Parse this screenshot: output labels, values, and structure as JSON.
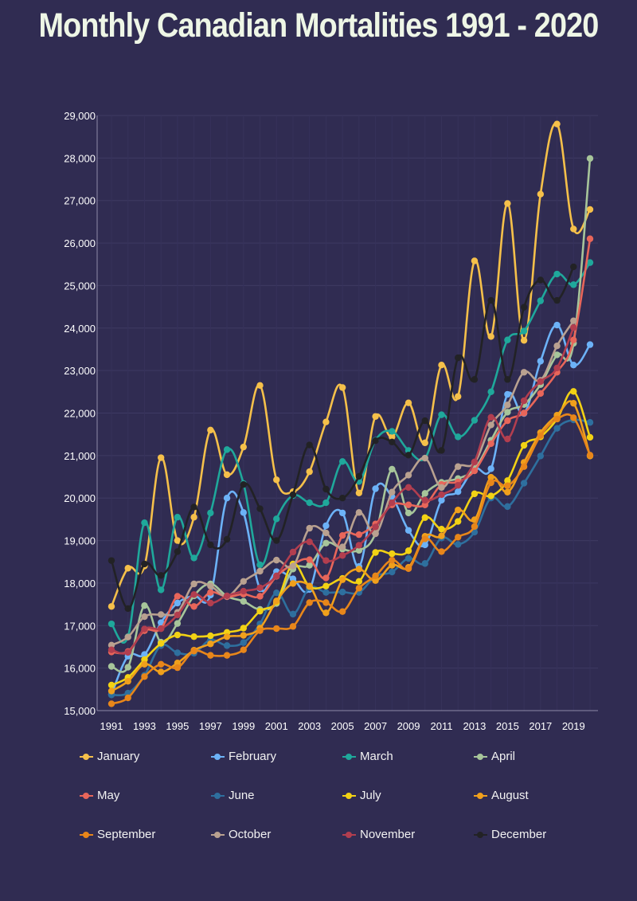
{
  "chart_data": {
    "type": "line",
    "title": "Monthly Canadian Mortalities 1991 - 2020",
    "xlabel": "",
    "ylabel": "",
    "x": [
      1991,
      1992,
      1993,
      1994,
      1995,
      1996,
      1997,
      1998,
      1999,
      2000,
      2001,
      2002,
      2003,
      2004,
      2005,
      2006,
      2007,
      2008,
      2009,
      2010,
      2011,
      2012,
      2013,
      2014,
      2015,
      2016,
      2017,
      2018,
      2019,
      2020
    ],
    "x_ticks": [
      "1991",
      "1993",
      "1995",
      "1997",
      "1999",
      "2001",
      "2003",
      "2005",
      "2007",
      "2009",
      "2011",
      "2013",
      "2015",
      "2017",
      "2019"
    ],
    "y_ticks": [
      "15,000",
      "16,000",
      "17,000",
      "18,000",
      "19,000",
      "20,000",
      "21,000",
      "22,000",
      "23,000",
      "24,000",
      "25,000",
      "26,000",
      "27,000",
      "28,000",
      "29,000"
    ],
    "ylim": [
      15000,
      29000
    ],
    "grid": true,
    "legend": "bottom",
    "series": [
      {
        "name": "January",
        "color": "#f5c04a",
        "values": [
          17450,
          18350,
          18400,
          20950,
          19000,
          19550,
          21600,
          20550,
          21200,
          22650,
          20430,
          20150,
          20620,
          21790,
          22600,
          20120,
          21920,
          21440,
          22240,
          21300,
          23130,
          22390,
          25580,
          23800,
          26930,
          23710,
          27150,
          28800,
          26330,
          26790
        ]
      },
      {
        "name": "February",
        "color": "#6cb2f7",
        "values": [
          15380,
          16280,
          16320,
          17070,
          17530,
          17700,
          17720,
          20000,
          19660,
          17870,
          18270,
          18100,
          17850,
          19350,
          19650,
          18390,
          20220,
          20030,
          19240,
          18900,
          19950,
          20150,
          20690,
          20690,
          22440,
          21990,
          23220,
          24070,
          23130,
          23610
        ]
      },
      {
        "name": "March",
        "color": "#1fa89b",
        "values": [
          17040,
          16740,
          19420,
          17840,
          19550,
          18590,
          19650,
          21140,
          20340,
          18430,
          19510,
          20060,
          19890,
          19890,
          20860,
          20390,
          21360,
          21570,
          21120,
          20940,
          21960,
          21440,
          21830,
          22500,
          23720,
          23930,
          24640,
          25270,
          25020,
          25540
        ]
      },
      {
        "name": "April",
        "color": "#a7c59a",
        "values": [
          16040,
          16020,
          17470,
          16610,
          17050,
          17700,
          17980,
          17690,
          17570,
          17380,
          17520,
          18330,
          18420,
          18940,
          18800,
          18770,
          19170,
          20680,
          19650,
          20110,
          20370,
          20460,
          20680,
          21360,
          22020,
          22200,
          22670,
          23370,
          23640,
          27990
        ]
      },
      {
        "name": "May",
        "color": "#e8665a",
        "values": [
          16380,
          16390,
          16880,
          16930,
          17690,
          17450,
          17780,
          17680,
          17740,
          17690,
          18160,
          18440,
          18550,
          18120,
          19120,
          19140,
          19390,
          19840,
          19840,
          19840,
          20320,
          20380,
          20640,
          21280,
          21820,
          22000,
          22460,
          22960,
          23720,
          26100
        ]
      },
      {
        "name": "June",
        "color": "#2e6f9e",
        "values": [
          15370,
          15410,
          15830,
          16530,
          16360,
          16350,
          16660,
          16530,
          16600,
          17040,
          17770,
          17270,
          17890,
          17780,
          17790,
          17780,
          18160,
          18260,
          18580,
          18460,
          19060,
          18910,
          19200,
          20000,
          19800,
          20350,
          20990,
          21640,
          21840,
          21780
        ]
      },
      {
        "name": "July",
        "color": "#f2d214",
        "values": [
          15600,
          15780,
          16200,
          16580,
          16780,
          16740,
          16760,
          16840,
          16940,
          17340,
          17550,
          18450,
          17920,
          17930,
          18110,
          18040,
          18720,
          18690,
          18760,
          19540,
          19270,
          19450,
          20100,
          20050,
          20410,
          21240,
          21440,
          21860,
          22510,
          21430
        ]
      },
      {
        "name": "August",
        "color": "#f0a01c",
        "values": [
          15460,
          15690,
          16090,
          15910,
          16120,
          16420,
          16570,
          16740,
          16770,
          16940,
          17580,
          17990,
          17930,
          17300,
          18080,
          18330,
          18060,
          18420,
          18370,
          19100,
          19110,
          19720,
          19490,
          20490,
          20140,
          20840,
          21540,
          21950,
          22230,
          20990
        ]
      },
      {
        "name": "September",
        "color": "#e8861a",
        "values": [
          15160,
          15300,
          15800,
          16090,
          16010,
          16400,
          16300,
          16300,
          16430,
          16880,
          16930,
          16980,
          17540,
          17540,
          17330,
          17880,
          18170,
          18540,
          18340,
          19040,
          18740,
          19080,
          19330,
          20360,
          20290,
          20740,
          21470,
          21860,
          21890,
          21010
        ]
      },
      {
        "name": "October",
        "color": "#b9a190",
        "values": [
          16540,
          16730,
          17210,
          17260,
          17310,
          17980,
          17930,
          17690,
          18040,
          18280,
          18540,
          18400,
          19290,
          19180,
          18850,
          19660,
          19160,
          20140,
          20540,
          20940,
          20250,
          20740,
          20830,
          21720,
          22190,
          22960,
          22770,
          23580,
          24170,
          null
        ]
      },
      {
        "name": "November",
        "color": "#b23e4f",
        "values": [
          16430,
          16370,
          16920,
          16930,
          17250,
          17730,
          17530,
          17700,
          17810,
          17890,
          18170,
          18730,
          18970,
          18530,
          18650,
          18890,
          19320,
          19890,
          20250,
          19950,
          20080,
          20300,
          20850,
          21900,
          21390,
          22290,
          22740,
          23060,
          24010,
          null
        ]
      },
      {
        "name": "December",
        "color": "#222225",
        "values": [
          18530,
          17400,
          18450,
          18180,
          18740,
          19790,
          18900,
          19030,
          20320,
          19750,
          19000,
          20080,
          21250,
          20210,
          20000,
          20510,
          21350,
          21320,
          21010,
          21820,
          21120,
          23300,
          22790,
          24650,
          22790,
          24490,
          25130,
          24650,
          25440,
          null
        ]
      }
    ]
  }
}
